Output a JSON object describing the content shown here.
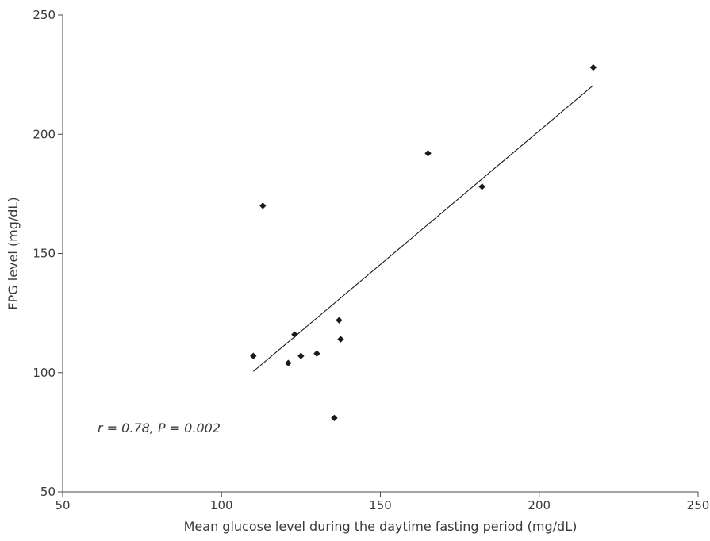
{
  "chart_data": {
    "type": "scatter",
    "title": "",
    "xlabel": "Mean glucose level during the daytime fasting period (mg/dL)",
    "ylabel": "FPG level (mg/dL)",
    "xlim": [
      50,
      250
    ],
    "ylim": [
      50,
      250
    ],
    "x_ticks": [
      50,
      100,
      150,
      200,
      250
    ],
    "y_ticks": [
      50,
      100,
      150,
      200,
      250
    ],
    "x_tick_labels": [
      "50",
      "100",
      "150",
      "200",
      "250"
    ],
    "y_tick_labels": [
      "50",
      "100",
      "150",
      "200",
      "250"
    ],
    "grid": false,
    "legend": "none",
    "marker": "diamond",
    "marker_color": "#1a1a1a",
    "series": [
      {
        "points": [
          {
            "x": 110,
            "y": 107
          },
          {
            "x": 113,
            "y": 170
          },
          {
            "x": 121,
            "y": 104
          },
          {
            "x": 123,
            "y": 116
          },
          {
            "x": 125,
            "y": 107
          },
          {
            "x": 130,
            "y": 108
          },
          {
            "x": 135.5,
            "y": 81
          },
          {
            "x": 137,
            "y": 122
          },
          {
            "x": 137.5,
            "y": 114
          },
          {
            "x": 165,
            "y": 192
          },
          {
            "x": 182,
            "y": 178
          },
          {
            "x": 217,
            "y": 228
          }
        ]
      }
    ],
    "trendline": {
      "type": "linear",
      "x_start": 110,
      "y_start": 100.5,
      "x_end": 217,
      "y_end": 220.5,
      "color": "#1a1a1a"
    },
    "annotation": {
      "text": "r = 0.78, P = 0.002"
    }
  }
}
